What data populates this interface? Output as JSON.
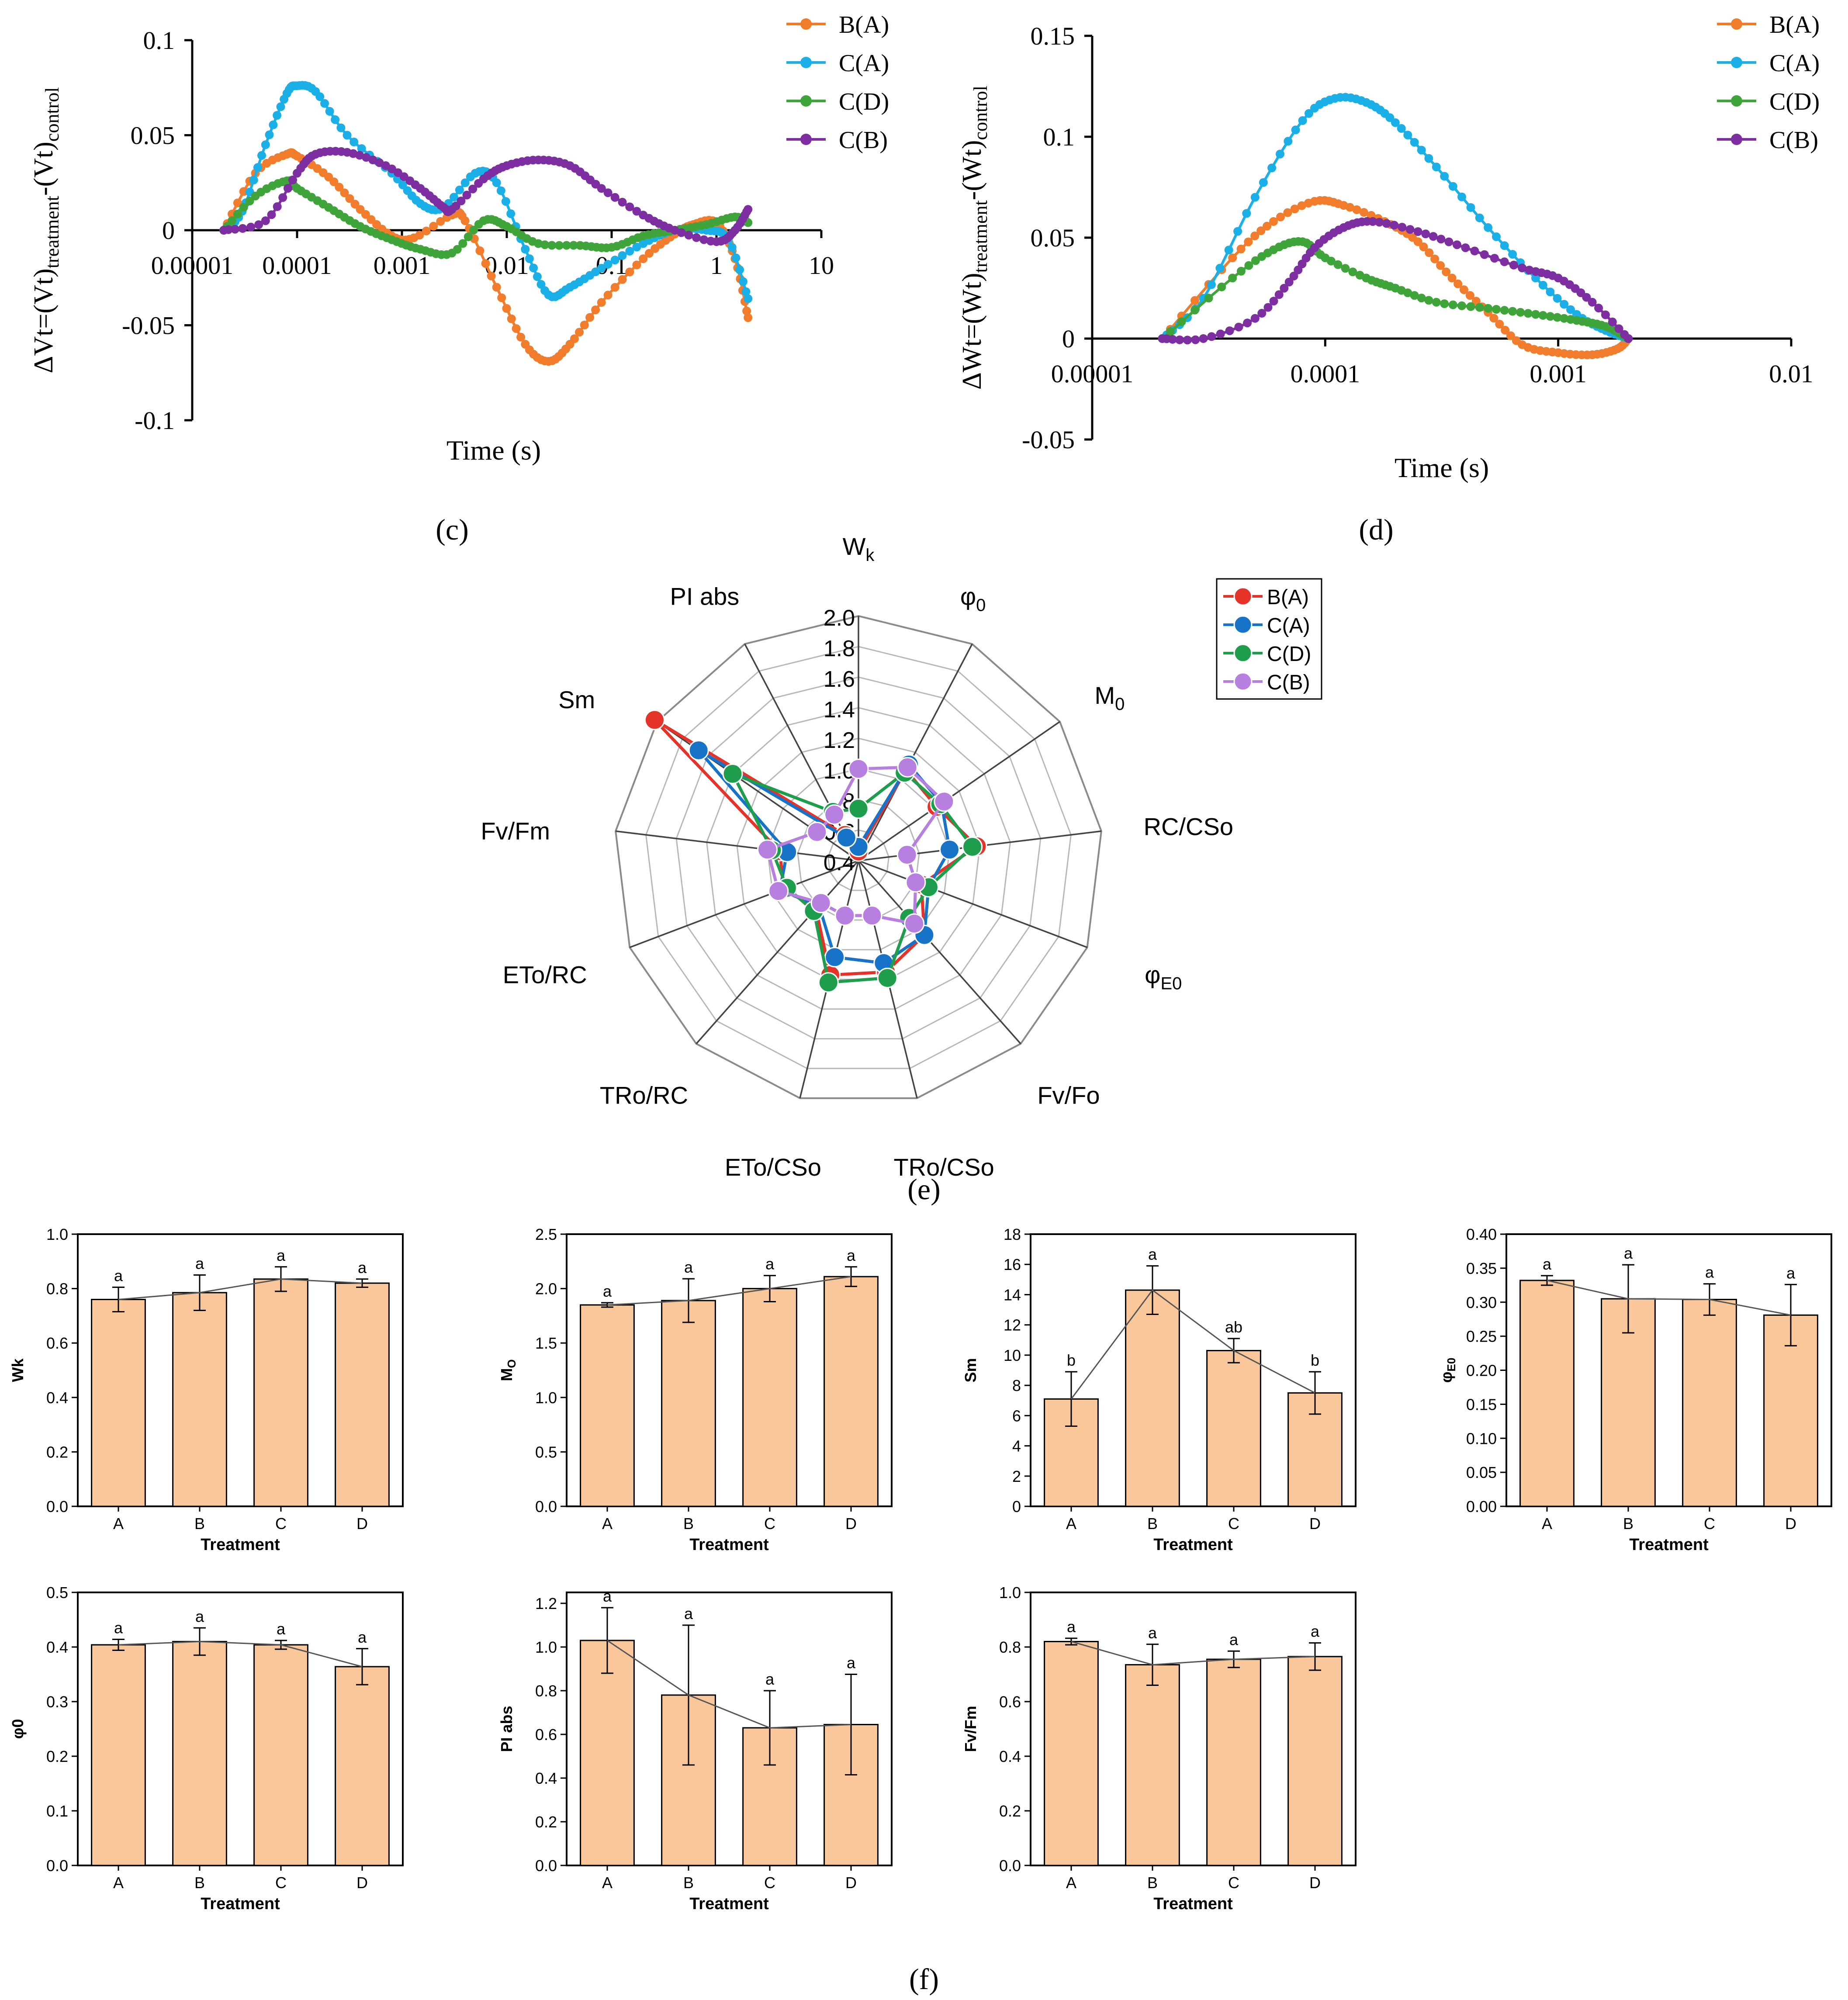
{
  "colors": {
    "B(A)": "#F07C2C",
    "C(A)": "#1AAFE6",
    "C(D)": "#3FA43A",
    "C(B)": "#7D2EA0",
    "radar_B(A)": "#E6332A",
    "radar_C(A)": "#1673C8",
    "radar_C(D)": "#1E9E4C",
    "radar_C(B)": "#B77FE0",
    "bar_fill": "#F9C79A"
  },
  "panels": {
    "c": "(c)",
    "d": "(d)",
    "e": "(e)",
    "f": "(f)"
  },
  "chart_data": [
    {
      "id": "c",
      "type": "line",
      "xscale": "log",
      "xlim": [
        1e-05,
        10
      ],
      "ylim": [
        -0.1,
        0.1
      ],
      "xlabel": "Time (s)",
      "ylabel_main": "ΔVt=(Vt)",
      "ylabel_sub1": "treatment",
      "ylabel_mid": "-(Vt)",
      "ylabel_sub2": "control",
      "yticks": [
        "0.1",
        "0.05",
        "0",
        "-0.05",
        "-0.1"
      ],
      "xticks": [
        "0.00001",
        "0.0001",
        "0.001",
        "0.01",
        "0.1",
        "1",
        "10"
      ],
      "legend": [
        "B(A)",
        "C(A)",
        "C(D)",
        "C(B)"
      ],
      "series": [
        {
          "name": "B(A)",
          "points": [
            [
              2e-05,
              0
            ],
            [
              4e-05,
              0.03
            ],
            [
              8e-05,
              0.04
            ],
            [
              0.0001,
              0.039
            ],
            [
              0.0002,
              0.028
            ],
            [
              0.0004,
              0.011
            ],
            [
              0.0008,
              -0.003
            ],
            [
              0.0013,
              -0.004
            ],
            [
              0.003,
              0.008
            ],
            [
              0.004,
              0.005
            ],
            [
              0.008,
              -0.03
            ],
            [
              0.015,
              -0.06
            ],
            [
              0.025,
              -0.069
            ],
            [
              0.04,
              -0.06
            ],
            [
              0.08,
              -0.038
            ],
            [
              0.2,
              -0.015
            ],
            [
              0.4,
              -0.002
            ],
            [
              0.6,
              0.003
            ],
            [
              1,
              0.004
            ],
            [
              1.5,
              -0.015
            ],
            [
              2,
              -0.046
            ]
          ]
        },
        {
          "name": "C(A)",
          "points": [
            [
              2e-05,
              0
            ],
            [
              3e-05,
              0.01
            ],
            [
              5e-05,
              0.045
            ],
            [
              8e-05,
              0.072
            ],
            [
              0.0001,
              0.076
            ],
            [
              0.00015,
              0.073
            ],
            [
              0.0003,
              0.05
            ],
            [
              0.0008,
              0.03
            ],
            [
              0.0015,
              0.014
            ],
            [
              0.0025,
              0.012
            ],
            [
              0.005,
              0.03
            ],
            [
              0.008,
              0.025
            ],
            [
              0.015,
              -0.01
            ],
            [
              0.025,
              -0.034
            ],
            [
              0.04,
              -0.03
            ],
            [
              0.08,
              -0.02
            ],
            [
              0.2,
              -0.007
            ],
            [
              0.4,
              0
            ],
            [
              0.8,
              0
            ],
            [
              1.3,
              -0.005
            ],
            [
              2,
              -0.036
            ]
          ]
        },
        {
          "name": "C(D)",
          "points": [
            [
              2e-05,
              0
            ],
            [
              4e-05,
              0.018
            ],
            [
              8e-05,
              0.026
            ],
            [
              0.0001,
              0.022
            ],
            [
              0.0002,
              0.012
            ],
            [
              0.0004,
              0.002
            ],
            [
              0.0008,
              -0.005
            ],
            [
              0.0015,
              -0.01
            ],
            [
              0.003,
              -0.012
            ],
            [
              0.006,
              0.005
            ],
            [
              0.01,
              0.002
            ],
            [
              0.02,
              -0.007
            ],
            [
              0.05,
              -0.008
            ],
            [
              0.1,
              -0.009
            ],
            [
              0.2,
              -0.003
            ],
            [
              0.4,
              0
            ],
            [
              0.8,
              0.003
            ],
            [
              1.5,
              0.007
            ],
            [
              2,
              0.004
            ]
          ]
        },
        {
          "name": "C(B)",
          "points": [
            [
              2e-05,
              0
            ],
            [
              5e-05,
              0.005
            ],
            [
              0.0001,
              0.03
            ],
            [
              0.00015,
              0.04
            ],
            [
              0.0003,
              0.041
            ],
            [
              0.0007,
              0.034
            ],
            [
              0.0015,
              0.022
            ],
            [
              0.0025,
              0.012
            ],
            [
              0.003,
              0.011
            ],
            [
              0.006,
              0.027
            ],
            [
              0.01,
              0.034
            ],
            [
              0.02,
              0.037
            ],
            [
              0.04,
              0.034
            ],
            [
              0.08,
              0.022
            ],
            [
              0.2,
              0.008
            ],
            [
              0.4,
              0
            ],
            [
              1,
              -0.006
            ],
            [
              1.5,
              0
            ],
            [
              2,
              0.011
            ]
          ]
        }
      ]
    },
    {
      "id": "d",
      "type": "line",
      "xscale": "log",
      "xlim": [
        1e-05,
        0.01
      ],
      "ylim": [
        -0.05,
        0.15
      ],
      "xlabel": "Time (s)",
      "ylabel_main": "ΔWt=(Wt)",
      "ylabel_sub1": "treatment",
      "ylabel_mid": "-(Wt)",
      "ylabel_sub2": "control",
      "yticks": [
        "0.15",
        "0.1",
        "0.05",
        "0",
        "-0.05"
      ],
      "xticks": [
        "0.00001",
        "0.0001",
        "0.001",
        "0.01"
      ],
      "legend": [
        "B(A)",
        "C(A)",
        "C(D)",
        "C(B)"
      ],
      "series": [
        {
          "name": "B(A)",
          "points": [
            [
              2e-05,
              0
            ],
            [
              4e-05,
              0.04
            ],
            [
              6e-05,
              0.058
            ],
            [
              9e-05,
              0.068
            ],
            [
              0.00012,
              0.066
            ],
            [
              0.00018,
              0.058
            ],
            [
              0.00025,
              0.048
            ],
            [
              0.00035,
              0.03
            ],
            [
              0.0005,
              0.013
            ],
            [
              0.0007,
              -0.003
            ],
            [
              0.001,
              -0.007
            ],
            [
              0.0014,
              -0.008
            ],
            [
              0.0018,
              -0.005
            ],
            [
              0.002,
              0
            ]
          ]
        },
        {
          "name": "C(A)",
          "points": [
            [
              2e-05,
              0
            ],
            [
              3e-05,
              0.02
            ],
            [
              5e-05,
              0.07
            ],
            [
              8e-05,
              0.108
            ],
            [
              0.00011,
              0.119
            ],
            [
              0.00015,
              0.117
            ],
            [
              0.0002,
              0.107
            ],
            [
              0.0003,
              0.085
            ],
            [
              0.0005,
              0.055
            ],
            [
              0.0008,
              0.03
            ],
            [
              0.0012,
              0.012
            ],
            [
              0.0016,
              0.004
            ],
            [
              0.002,
              0
            ]
          ]
        },
        {
          "name": "C(D)",
          "points": [
            [
              2e-05,
              0
            ],
            [
              4e-05,
              0.03
            ],
            [
              6e-05,
              0.044
            ],
            [
              8e-05,
              0.048
            ],
            [
              0.0001,
              0.04
            ],
            [
              0.00015,
              0.03
            ],
            [
              0.0002,
              0.025
            ],
            [
              0.0003,
              0.018
            ],
            [
              0.0005,
              0.015
            ],
            [
              0.0008,
              0.012
            ],
            [
              0.0012,
              0.009
            ],
            [
              0.0016,
              0.006
            ],
            [
              0.002,
              0
            ]
          ]
        },
        {
          "name": "C(B)",
          "points": [
            [
              2e-05,
              0
            ],
            [
              3e-05,
              0
            ],
            [
              5e-05,
              0.01
            ],
            [
              7e-05,
              0.028
            ],
            [
              9e-05,
              0.045
            ],
            [
              0.00012,
              0.055
            ],
            [
              0.00016,
              0.058
            ],
            [
              0.00025,
              0.053
            ],
            [
              0.0004,
              0.045
            ],
            [
              0.0007,
              0.035
            ],
            [
              0.001,
              0.03
            ],
            [
              0.0014,
              0.018
            ],
            [
              0.002,
              0
            ]
          ]
        }
      ]
    },
    {
      "id": "e",
      "type": "radar",
      "range": [
        0.4,
        2.0
      ],
      "ticks": [
        "0.4",
        "0.6",
        ".8",
        "1.0",
        "1.2",
        "1.4",
        "1.6",
        "1.8",
        "2.0"
      ],
      "axes": [
        "Wk",
        "φ0",
        "M0",
        "RC/CSo",
        "φE0",
        "Fv/Fo",
        "TRo/CSo",
        "ETo/CSo",
        "TRo/RC",
        "ETo/RC",
        "Fv/Fm",
        "Sm",
        "PI abs"
      ],
      "axis_labels": [
        {
          "main": "W",
          "sub": "k"
        },
        {
          "main": "φ",
          "sub": "0"
        },
        {
          "main": "M",
          "sub": "0"
        },
        {
          "main": "RC/CSo",
          "sub": ""
        },
        {
          "main": "φ",
          "sub": "E0"
        },
        {
          "main": "Fv/Fo",
          "sub": ""
        },
        {
          "main": "TRo/CSo",
          "sub": ""
        },
        {
          "main": "ETo/CSo",
          "sub": ""
        },
        {
          "main": "TRo/RC",
          "sub": ""
        },
        {
          "main": "ETo/RC",
          "sub": ""
        },
        {
          "main": "Fv/Fm",
          "sub": ""
        },
        {
          "main": "Sm",
          "sub": ""
        },
        {
          "main": "PI abs",
          "sub": ""
        }
      ],
      "legend": [
        "B(A)",
        "C(A)",
        "C(D)",
        "C(B)"
      ],
      "series": [
        {
          "name": "B(A)",
          "values": [
            0.46,
            1.07,
            1.02,
            1.18,
            0.84,
            1.05,
            1.15,
            1.17,
            0.82,
            0.92,
            0.92,
            2.02,
            0.59
          ]
        },
        {
          "name": "C(A)",
          "values": [
            0.49,
            1.11,
            1.06,
            1.0,
            0.89,
            1.05,
            1.09,
            1.05,
            0.79,
            0.95,
            0.87,
            1.67,
            0.57
          ]
        },
        {
          "name": "C(D)",
          "values": [
            0.74,
            1.05,
            1.05,
            1.15,
            0.89,
            0.9,
            1.19,
            1.22,
            0.84,
            0.9,
            0.97,
            1.4,
            0.76
          ]
        },
        {
          "name": "C(B)",
          "values": [
            1.0,
            1.09,
            1.08,
            0.72,
            0.8,
            0.95,
            0.77,
            0.77,
            0.77,
            0.96,
            1.0,
            0.73,
            0.74
          ]
        }
      ]
    },
    {
      "id": "f1",
      "type": "bar",
      "ylabel_main": "Wk",
      "ylabel_sub": "",
      "xlabel": "Treatment",
      "categories": [
        "A",
        "B",
        "C",
        "D"
      ],
      "ylim": [
        0,
        1.0
      ],
      "yticks": [
        "0.0",
        "0.2",
        "0.4",
        "0.6",
        "0.8",
        "1.0"
      ],
      "values": [
        0.76,
        0.785,
        0.835,
        0.82
      ],
      "errors": [
        0.045,
        0.065,
        0.045,
        0.015
      ],
      "letters": [
        "a",
        "a",
        "a",
        "a"
      ]
    },
    {
      "id": "f2",
      "type": "bar",
      "ylabel_main": "M",
      "ylabel_sub": "O",
      "xlabel": "Treatment",
      "categories": [
        "A",
        "B",
        "C",
        "D"
      ],
      "ylim": [
        0,
        2.5
      ],
      "yticks": [
        "0.0",
        "0.5",
        "1.0",
        "1.5",
        "2.0",
        "2.5"
      ],
      "values": [
        1.85,
        1.89,
        2.0,
        2.11
      ],
      "errors": [
        0.02,
        0.2,
        0.12,
        0.09
      ],
      "letters": [
        "a",
        "a",
        "a",
        "a"
      ]
    },
    {
      "id": "f3",
      "type": "bar",
      "ylabel_main": "Sm",
      "ylabel_sub": "",
      "xlabel": "Treatment",
      "categories": [
        "A",
        "B",
        "C",
        "D"
      ],
      "ylim": [
        0,
        18
      ],
      "yticks": [
        "0",
        "2",
        "4",
        "6",
        "8",
        "10",
        "12",
        "14",
        "16",
        "18"
      ],
      "values": [
        7.1,
        14.3,
        10.3,
        7.5
      ],
      "errors": [
        1.8,
        1.6,
        0.8,
        1.4
      ],
      "letters": [
        "b",
        "a",
        "ab",
        "b"
      ]
    },
    {
      "id": "f4",
      "type": "bar",
      "ylabel_main": "φ",
      "ylabel_sub": "E0",
      "xlabel": "Treatment",
      "categories": [
        "A",
        "B",
        "C",
        "D"
      ],
      "ylim": [
        0,
        0.4
      ],
      "yticks": [
        "0.00",
        "0.05",
        "0.10",
        "0.15",
        "0.20",
        "0.25",
        "0.30",
        "0.35",
        "0.40"
      ],
      "values": [
        0.332,
        0.305,
        0.304,
        0.281
      ],
      "errors": [
        0.007,
        0.05,
        0.023,
        0.045
      ],
      "letters": [
        "a",
        "a",
        "a",
        "a"
      ]
    },
    {
      "id": "f5",
      "type": "bar",
      "ylabel_main": "φ0",
      "ylabel_sub": "",
      "xlabel": "Treatment",
      "categories": [
        "A",
        "B",
        "C",
        "D"
      ],
      "ylim": [
        0,
        0.5
      ],
      "yticks": [
        "0.0",
        "0.1",
        "0.2",
        "0.3",
        "0.4",
        "0.5"
      ],
      "values": [
        0.404,
        0.41,
        0.404,
        0.364
      ],
      "errors": [
        0.01,
        0.025,
        0.008,
        0.033
      ],
      "letters": [
        "a",
        "a",
        "a",
        "a"
      ]
    },
    {
      "id": "f6",
      "type": "bar",
      "ylabel_main": "PI abs",
      "ylabel_sub": "",
      "xlabel": "Treatment",
      "categories": [
        "A",
        "B",
        "C",
        "D"
      ],
      "ylim": [
        0,
        1.25
      ],
      "yticks": [
        "0.0",
        "0.2",
        "0.4",
        "0.6",
        "0.8",
        "1.0",
        "1.2"
      ],
      "values": [
        1.03,
        0.78,
        0.63,
        0.645
      ],
      "errors": [
        0.15,
        0.32,
        0.17,
        0.23
      ],
      "letters": [
        "a",
        "a",
        "a",
        "a"
      ]
    },
    {
      "id": "f7",
      "type": "bar",
      "ylabel_main": "Fv/Fm",
      "ylabel_sub": "",
      "xlabel": "Treatment",
      "categories": [
        "A",
        "B",
        "C",
        "D"
      ],
      "ylim": [
        0,
        1.0
      ],
      "yticks": [
        "0.0",
        "0.2",
        "0.4",
        "0.6",
        "0.8",
        "1.0"
      ],
      "values": [
        0.82,
        0.735,
        0.755,
        0.765
      ],
      "errors": [
        0.012,
        0.075,
        0.03,
        0.05
      ],
      "letters": [
        "a",
        "a",
        "a",
        "a"
      ]
    }
  ]
}
